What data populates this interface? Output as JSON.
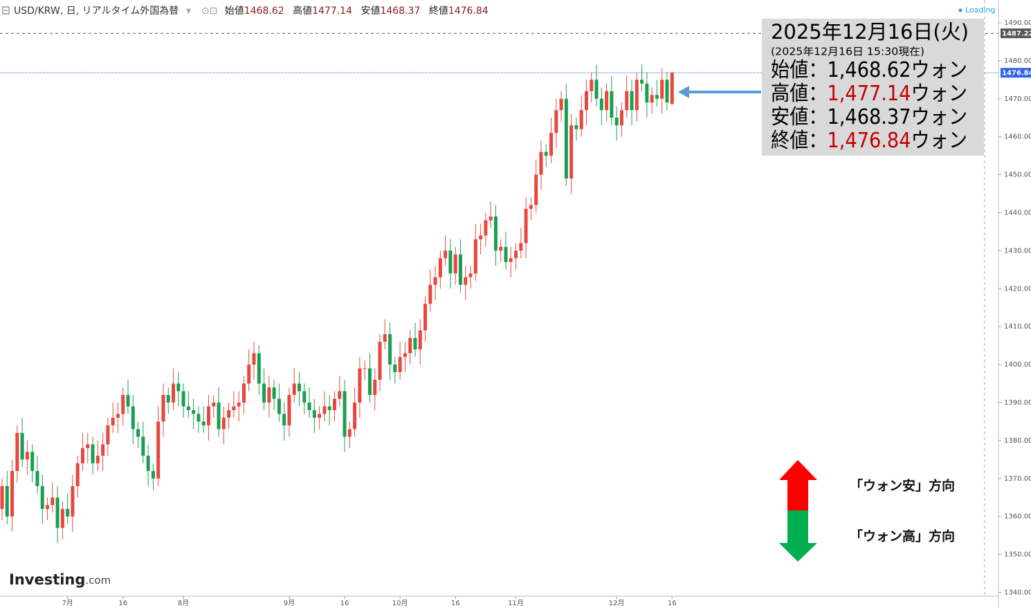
{
  "header": {
    "symbol": "USD/KRW, 日, リアルタイム外国為替",
    "labels": [
      "始値",
      "高値",
      "安値",
      "終値"
    ],
    "loading": "Loading"
  },
  "chart_data": {
    "type": "candlestick",
    "categories": [
      null,
      null,
      null,
      null,
      null,
      null,
      null,
      null,
      null,
      null,
      null,
      null,
      null,
      "7月",
      null,
      null,
      null,
      null,
      null,
      null,
      null,
      null,
      null,
      null,
      "16",
      null,
      null,
      null,
      null,
      null,
      null,
      null,
      null,
      null,
      null,
      null,
      "8月",
      null,
      null,
      null,
      null,
      null,
      null,
      null,
      null,
      null,
      null,
      null,
      null,
      null,
      null,
      null,
      null,
      null,
      null,
      null,
      null,
      "9月",
      null,
      null,
      null,
      null,
      null,
      null,
      null,
      null,
      null,
      null,
      "16",
      null,
      null,
      null,
      null,
      null,
      null,
      null,
      null,
      null,
      null,
      "10月",
      null,
      null,
      null,
      null,
      null,
      null,
      null,
      null,
      null,
      null,
      "16",
      null,
      null,
      null,
      null,
      null,
      null,
      null,
      null,
      null,
      null,
      null,
      "11月",
      null,
      null,
      null,
      null,
      null,
      null,
      null,
      null,
      null,
      null,
      null,
      null,
      null,
      null,
      null,
      null,
      null,
      null,
      null,
      "12月",
      null,
      null,
      null,
      null,
      null,
      null,
      null,
      null,
      null,
      null,
      "16"
    ],
    "open": [
      1362,
      1368,
      1360,
      1372,
      1382,
      1375,
      1377,
      1372,
      1368,
      1362,
      1363,
      1365,
      1357,
      1362,
      1360,
      1368,
      1374,
      1378,
      1379,
      1374,
      1376,
      1379,
      1384,
      1386,
      1387,
      1392,
      1389,
      1383,
      1381,
      1376,
      1372,
      1370,
      1385,
      1392,
      1390,
      1395,
      1393,
      1389,
      1388,
      1387,
      1385,
      1384,
      1389,
      1390,
      1383,
      1386,
      1388,
      1389,
      1390,
      1395,
      1400,
      1403,
      1395,
      1390,
      1394,
      1391,
      1387,
      1384,
      1392,
      1395,
      1393,
      1390,
      1388,
      1386,
      1387,
      1389,
      1388,
      1391,
      1393,
      1381,
      1383,
      1390,
      1399,
      1399,
      1392,
      1396,
      1406,
      1408,
      1400,
      1398,
      1402,
      1403,
      1407,
      1404,
      1409,
      1416,
      1421,
      1423,
      1428,
      1430,
      1424,
      1429,
      1421,
      1423,
      1424,
      1433,
      1434,
      1438,
      1439,
      1430,
      1431,
      1427,
      1428,
      1430,
      1432,
      1441,
      1442,
      1450,
      1456,
      1455,
      1461,
      1467,
      1470,
      1449,
      1463,
      1462,
      1467,
      1472,
      1475,
      1470,
      1467,
      1472,
      1465,
      1463,
      1467,
      1472,
      1467,
      1475,
      1474,
      1469,
      1471,
      1470,
      1475,
      1468.62
    ],
    "high": [
      1370,
      1372,
      1375,
      1384,
      1386,
      1380,
      1379,
      1376,
      1371,
      1365,
      1369,
      1368,
      1364,
      1366,
      1371,
      1376,
      1382,
      1382,
      1381,
      1380,
      1382,
      1386,
      1390,
      1390,
      1394,
      1396,
      1392,
      1385,
      1385,
      1379,
      1374,
      1389,
      1395,
      1394,
      1399,
      1398,
      1395,
      1393,
      1391,
      1389,
      1389,
      1392,
      1392,
      1394,
      1389,
      1390,
      1393,
      1393,
      1397,
      1404,
      1406,
      1405,
      1399,
      1397,
      1396,
      1395,
      1390,
      1394,
      1399,
      1398,
      1395,
      1394,
      1391,
      1389,
      1393,
      1392,
      1393,
      1397,
      1396,
      1385,
      1394,
      1402,
      1401,
      1403,
      1399,
      1408,
      1412,
      1411,
      1402,
      1406,
      1406,
      1409,
      1411,
      1412,
      1418,
      1425,
      1426,
      1430,
      1434,
      1433,
      1431,
      1433,
      1426,
      1426,
      1437,
      1437,
      1440,
      1443,
      1442,
      1433,
      1435,
      1431,
      1432,
      1436,
      1444,
      1444,
      1454,
      1459,
      1458,
      1465,
      1470,
      1472,
      1474,
      1466,
      1465,
      1471,
      1475,
      1477,
      1479,
      1473,
      1474,
      1476,
      1468,
      1469,
      1476,
      1475,
      1477,
      1479,
      1477,
      1473,
      1475,
      1478,
      1477,
      1477.14
    ],
    "low": [
      1359,
      1358,
      1356,
      1369,
      1373,
      1371,
      1369,
      1366,
      1358,
      1359,
      1361,
      1353,
      1354,
      1358,
      1356,
      1365,
      1372,
      1374,
      1371,
      1372,
      1372,
      1376,
      1382,
      1382,
      1384,
      1387,
      1379,
      1378,
      1374,
      1368,
      1367,
      1368,
      1381,
      1387,
      1388,
      1389,
      1386,
      1386,
      1383,
      1382,
      1382,
      1380,
      1386,
      1381,
      1379,
      1383,
      1386,
      1385,
      1387,
      1393,
      1396,
      1392,
      1388,
      1386,
      1388,
      1385,
      1380,
      1381,
      1390,
      1389,
      1387,
      1386,
      1382,
      1383,
      1385,
      1384,
      1385,
      1389,
      1377,
      1378,
      1381,
      1386,
      1396,
      1390,
      1388,
      1393,
      1404,
      1396,
      1395,
      1396,
      1398,
      1400,
      1402,
      1400,
      1406,
      1414,
      1417,
      1420,
      1426,
      1420,
      1421,
      1419,
      1417,
      1420,
      1422,
      1429,
      1431,
      1436,
      1426,
      1427,
      1425,
      1423,
      1425,
      1428,
      1428,
      1438,
      1440,
      1446,
      1452,
      1453,
      1457,
      1464,
      1447,
      1445,
      1459,
      1460,
      1463,
      1469,
      1468,
      1463,
      1464,
      1463,
      1459,
      1460,
      1465,
      1463,
      1464,
      1472,
      1465,
      1466,
      1468,
      1466,
      1467,
      1468.37
    ],
    "close": [
      1368,
      1360,
      1372,
      1382,
      1375,
      1377,
      1372,
      1368,
      1362,
      1363,
      1365,
      1357,
      1362,
      1360,
      1368,
      1374,
      1378,
      1379,
      1374,
      1376,
      1379,
      1384,
      1386,
      1387,
      1392,
      1389,
      1383,
      1381,
      1376,
      1372,
      1370,
      1385,
      1392,
      1390,
      1395,
      1393,
      1389,
      1388,
      1387,
      1385,
      1384,
      1389,
      1390,
      1383,
      1386,
      1388,
      1389,
      1390,
      1395,
      1400,
      1403,
      1395,
      1390,
      1394,
      1391,
      1387,
      1384,
      1392,
      1395,
      1393,
      1390,
      1388,
      1386,
      1387,
      1389,
      1388,
      1391,
      1393,
      1381,
      1383,
      1390,
      1399,
      1399,
      1392,
      1396,
      1406,
      1408,
      1400,
      1398,
      1402,
      1403,
      1407,
      1404,
      1409,
      1416,
      1421,
      1423,
      1428,
      1430,
      1424,
      1429,
      1421,
      1423,
      1424,
      1433,
      1434,
      1438,
      1439,
      1430,
      1431,
      1427,
      1428,
      1430,
      1432,
      1441,
      1442,
      1450,
      1456,
      1455,
      1461,
      1467,
      1470,
      1449,
      1463,
      1462,
      1467,
      1472,
      1475,
      1470,
      1467,
      1472,
      1465,
      1463,
      1467,
      1472,
      1467,
      1475,
      1474,
      1469,
      1471,
      1470,
      1475,
      1469,
      1476.84
    ],
    "up_color": "#e5483f",
    "down_color": "#1a9f52",
    "ylim": [
      1339,
      1496
    ],
    "yticks": [
      {
        "value": 1340,
        "label": "1340.00"
      },
      {
        "value": 1350,
        "label": "1350.00"
      },
      {
        "value": 1360,
        "label": "1360.00"
      },
      {
        "value": 1370,
        "label": "1370.00"
      },
      {
        "value": 1380,
        "label": "1380.00"
      },
      {
        "value": 1390,
        "label": "1390.00"
      },
      {
        "value": 1400,
        "label": "1400.00"
      },
      {
        "value": 1410,
        "label": "1410.00"
      },
      {
        "value": 1420,
        "label": "1420.00"
      },
      {
        "value": 1430,
        "label": "1430.00"
      },
      {
        "value": 1440,
        "label": "1440.00"
      },
      {
        "value": 1450,
        "label": "1450.00"
      },
      {
        "value": 1460,
        "label": "1460.00"
      },
      {
        "value": 1470,
        "label": "1470.00"
      },
      {
        "value": 1480,
        "label": "1480.00"
      },
      {
        "value": 1490,
        "label": "1490.00"
      }
    ],
    "price_lines": [
      {
        "value": 1487.22,
        "color": "#555555",
        "dash": "4 4"
      },
      {
        "value": 1476.84,
        "color": "#2f66e0",
        "dash": "1 1"
      }
    ]
  },
  "brand": [
    "Investing",
    ".com"
  ],
  "info_box": {
    "date": "2025年12月16日(火)",
    "asof": "(2025年12月16日 15:30現在)",
    "rows": [
      {
        "label": "始値：",
        "value": "1,468.62",
        "unit": "ウォン",
        "color": "#000000"
      },
      {
        "label": "高値：",
        "value": "1,477.14",
        "unit": "ウォン",
        "color": "#c00000"
      },
      {
        "label": "安値：",
        "value": "1,468.37",
        "unit": "ウォン",
        "color": "#000000"
      },
      {
        "label": "終値：",
        "value": "1,476.84",
        "unit": "ウォン",
        "color": "#c00000"
      }
    ]
  },
  "annotations": [
    "「ウォン安」方向",
    "「ウォン高」方向"
  ]
}
